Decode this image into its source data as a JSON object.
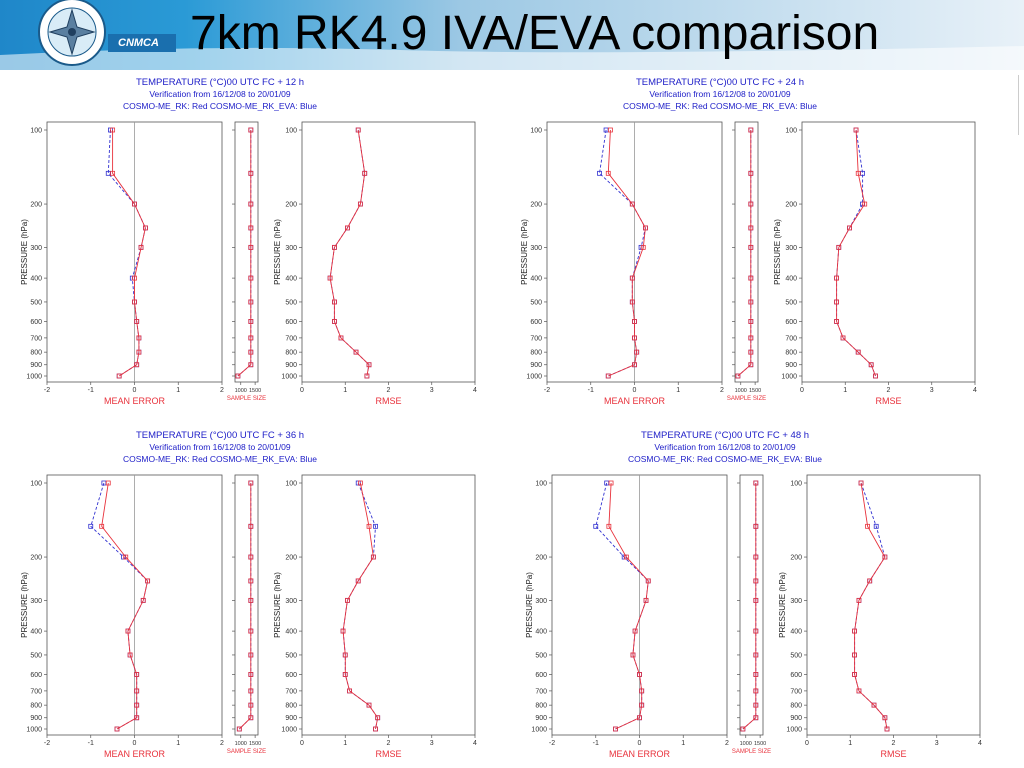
{
  "slide": {
    "title": "7km RK4.9 IVA/EVA comparison",
    "logo_text": "CNMCA",
    "accent_color": "#2a9ad6"
  },
  "common": {
    "pressure_levels": [
      100,
      150,
      200,
      250,
      300,
      400,
      500,
      600,
      700,
      800,
      900,
      1000
    ],
    "pressure_tick_labels": [
      "100",
      "200",
      "300",
      "400",
      "500",
      "600",
      "700",
      "800",
      "900",
      "1000"
    ],
    "ylabel": "PRESSURE (hPa)",
    "mean_error_label": "MEAN ERROR",
    "sample_size_label": "SAMPLE SIZE",
    "rmse_label": "RMSE",
    "mean_error_xlim": [
      -2,
      2
    ],
    "mean_error_ticks": [
      "-2",
      "-1",
      "0",
      "1",
      "2"
    ],
    "rmse_xlim": [
      0,
      4
    ],
    "rmse_ticks": [
      "0",
      "1",
      "2",
      "3",
      "4"
    ],
    "sample_size_xlim": [
      800,
      1600
    ],
    "sample_size_ticks": [
      "1000",
      "1500"
    ],
    "colors": {
      "red": "#e8323c",
      "blue": "#3030d0",
      "title": "#2020c8"
    }
  },
  "chart_data": [
    {
      "type": "line",
      "title_line1": "TEMPERATURE (°C)00 UTC  FC + 12 h",
      "title_line2": "Verification from 16/12/08 to 20/01/09",
      "title_line3": "COSMO-ME_RK: Red   COSMO-ME_RK_EVA: Blue",
      "mean_error": {
        "red": [
          -0.5,
          -0.5,
          0.0,
          0.25,
          0.15,
          0.0,
          0.0,
          0.05,
          0.1,
          0.1,
          0.05,
          -0.35
        ],
        "blue": [
          -0.55,
          -0.6,
          0.0,
          0.25,
          0.15,
          -0.05,
          0.0,
          0.05,
          0.1,
          0.1,
          0.05,
          -0.35
        ]
      },
      "sample_size": {
        "red": [
          1350,
          1350,
          1350,
          1350,
          1350,
          1350,
          1350,
          1350,
          1350,
          1350,
          1350,
          900
        ],
        "blue": [
          1350,
          1350,
          1350,
          1350,
          1350,
          1350,
          1350,
          1350,
          1350,
          1350,
          1350,
          900
        ]
      },
      "rmse": {
        "red": [
          1.3,
          1.45,
          1.35,
          1.05,
          0.75,
          0.65,
          0.75,
          0.75,
          0.9,
          1.25,
          1.55,
          1.5
        ],
        "blue": [
          1.3,
          1.45,
          1.35,
          1.05,
          0.75,
          0.65,
          0.75,
          0.75,
          0.9,
          1.25,
          1.55,
          1.5
        ]
      }
    },
    {
      "type": "line",
      "title_line1": "TEMPERATURE (°C)00 UTC  FC + 24 h",
      "title_line2": "Verification from 16/12/08 to 20/01/09",
      "title_line3": "COSMO-ME_RK: Red   COSMO-ME_RK_EVA: Blue",
      "mean_error": {
        "red": [
          -0.55,
          -0.6,
          -0.05,
          0.25,
          0.2,
          -0.05,
          -0.05,
          0.0,
          0.0,
          0.05,
          0.0,
          -0.6
        ],
        "blue": [
          -0.65,
          -0.8,
          -0.05,
          0.25,
          0.15,
          -0.05,
          -0.05,
          0.0,
          0.0,
          0.05,
          0.0,
          -0.6
        ]
      },
      "sample_size": {
        "red": [
          1350,
          1350,
          1350,
          1350,
          1350,
          1350,
          1350,
          1350,
          1350,
          1350,
          1350,
          900
        ],
        "blue": [
          1350,
          1350,
          1350,
          1350,
          1350,
          1350,
          1350,
          1350,
          1350,
          1350,
          1350,
          900
        ]
      },
      "rmse": {
        "red": [
          1.25,
          1.3,
          1.45,
          1.1,
          0.85,
          0.8,
          0.8,
          0.8,
          0.95,
          1.3,
          1.6,
          1.7
        ],
        "blue": [
          1.25,
          1.4,
          1.4,
          1.1,
          0.85,
          0.8,
          0.8,
          0.8,
          0.95,
          1.3,
          1.6,
          1.7
        ]
      }
    },
    {
      "type": "line",
      "title_line1": "TEMPERATURE (°C)00 UTC  FC + 36 h",
      "title_line2": "Verification from 16/12/08 to 20/01/09",
      "title_line3": "COSMO-ME_RK: Red   COSMO-ME_RK_EVA: Blue",
      "mean_error": {
        "red": [
          -0.6,
          -0.75,
          -0.2,
          0.3,
          0.2,
          -0.15,
          -0.1,
          0.05,
          0.05,
          0.05,
          0.05,
          -0.4
        ],
        "blue": [
          -0.7,
          -1.0,
          -0.25,
          0.3,
          0.2,
          -0.15,
          -0.1,
          0.05,
          0.05,
          0.05,
          0.05,
          -0.4
        ]
      },
      "sample_size": {
        "red": [
          1350,
          1350,
          1350,
          1350,
          1350,
          1350,
          1350,
          1350,
          1350,
          1350,
          1350,
          950
        ],
        "blue": [
          1350,
          1350,
          1350,
          1350,
          1350,
          1350,
          1350,
          1350,
          1350,
          1350,
          1350,
          950
        ]
      },
      "rmse": {
        "red": [
          1.35,
          1.55,
          1.65,
          1.3,
          1.05,
          0.95,
          1.0,
          1.0,
          1.1,
          1.55,
          1.75,
          1.7
        ],
        "blue": [
          1.3,
          1.7,
          1.65,
          1.3,
          1.05,
          0.95,
          1.0,
          1.0,
          1.1,
          1.55,
          1.75,
          1.7
        ]
      }
    },
    {
      "type": "line",
      "title_line1": "TEMPERATURE (°C)00 UTC  FC + 48 h",
      "title_line2": "Verification from 16/12/08 to 20/01/09",
      "title_line3": "COSMO-ME_RK: Red   COSMO-ME_RK_EVA: Blue",
      "mean_error": {
        "red": [
          -0.65,
          -0.7,
          -0.3,
          0.2,
          0.15,
          -0.1,
          -0.15,
          0.0,
          0.05,
          0.05,
          0.0,
          -0.55
        ],
        "blue": [
          -0.75,
          -1.0,
          -0.35,
          0.2,
          0.15,
          -0.1,
          -0.15,
          0.0,
          0.05,
          0.05,
          0.0,
          -0.55
        ]
      },
      "sample_size": {
        "red": [
          1350,
          1350,
          1350,
          1350,
          1350,
          1350,
          1350,
          1350,
          1350,
          1350,
          1350,
          900
        ],
        "blue": [
          1350,
          1350,
          1350,
          1350,
          1350,
          1350,
          1350,
          1350,
          1350,
          1350,
          1350,
          900
        ]
      },
      "rmse": {
        "red": [
          1.25,
          1.4,
          1.8,
          1.45,
          1.2,
          1.1,
          1.1,
          1.1,
          1.2,
          1.55,
          1.8,
          1.85
        ],
        "blue": [
          1.25,
          1.6,
          1.8,
          1.45,
          1.2,
          1.1,
          1.1,
          1.1,
          1.2,
          1.55,
          1.8,
          1.85
        ]
      }
    }
  ]
}
